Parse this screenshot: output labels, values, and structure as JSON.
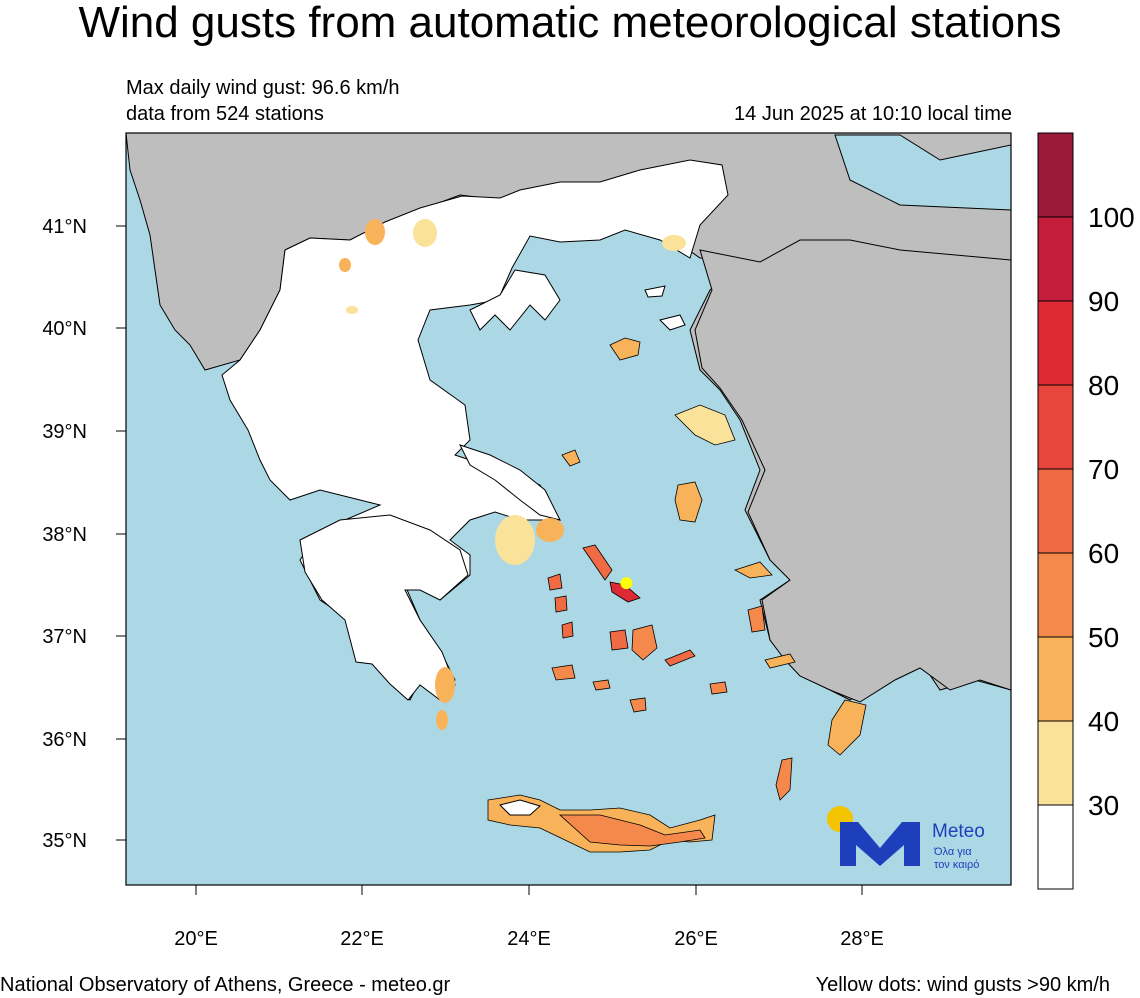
{
  "title": "Wind gusts from automatic meteorological stations",
  "subtitle": {
    "max_gust": "Max daily wind gust: 96.6 km/h",
    "stations": "data from 524 stations",
    "timestamp": "14 Jun 2025 at 10:10 local time"
  },
  "map": {
    "lon_range": [
      19.15,
      29.85
    ],
    "lat_range": [
      34.5,
      41.9
    ],
    "lat_ticks": [
      "41°N",
      "40°N",
      "39°N",
      "38°N",
      "37°N",
      "36°N",
      "35°N"
    ],
    "lon_ticks": [
      "20°E",
      "22°E",
      "24°E",
      "26°E",
      "28°E"
    ],
    "colors": {
      "sea": "#acd8e6",
      "foreign_land": "#bebebe",
      "greece_land": "#ffffff",
      "border": "#000000"
    },
    "yellow_dot": {
      "lon": 25.2,
      "lat": 37.47,
      "color": "#ffff00"
    }
  },
  "colorbar": {
    "labels": [
      "100",
      "90",
      "80",
      "70",
      "60",
      "50",
      "40",
      "30"
    ],
    "colors": [
      "#9b1a3a",
      "#c51d3c",
      "#e02a33",
      "#e8453c",
      "#f06b44",
      "#f5894c",
      "#f8b25a",
      "#fbe29a",
      "#ffffff"
    ]
  },
  "logo": {
    "brand": "Meteo",
    "tagline_1": "Όλα για",
    "tagline_2": "τον καιρό",
    "sun_color": "#f5c400",
    "brand_color": "#1d3fbb"
  },
  "footer": {
    "left": "National Observatory of Athens, Greece - meteo.gr",
    "right": "Yellow dots: wind gusts >90 km/h"
  }
}
